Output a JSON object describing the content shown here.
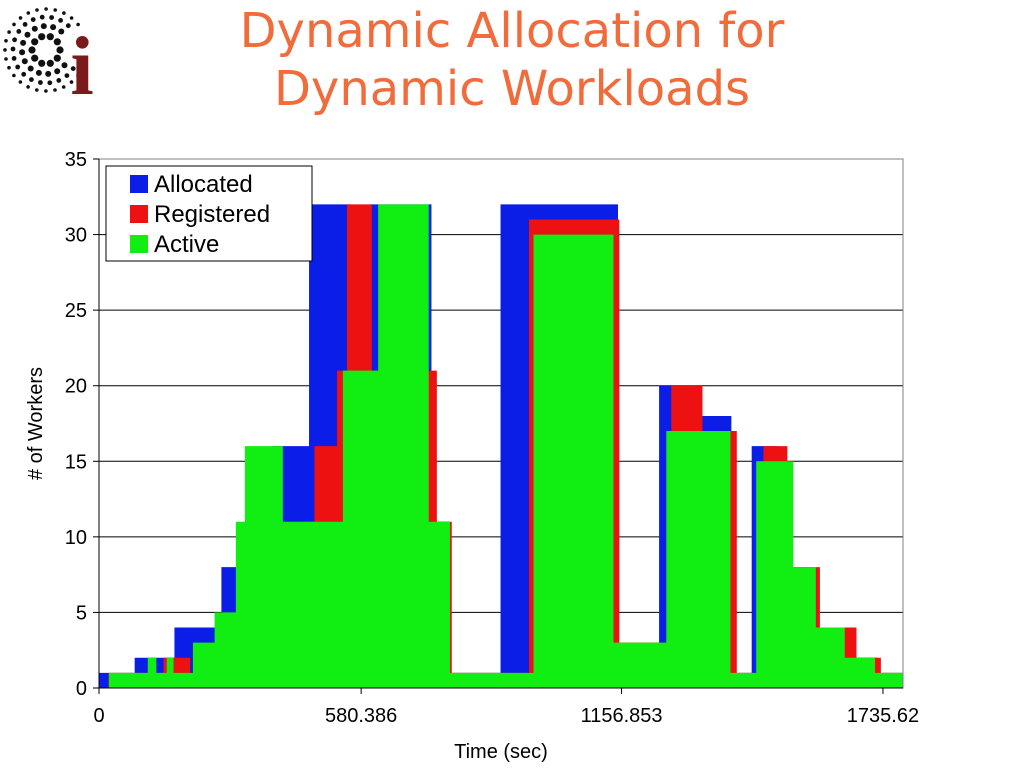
{
  "slide": {
    "title_line1": "Dynamic Allocation for",
    "title_line2": "Dynamic Workloads",
    "logo_letter": "i",
    "logo_colors": {
      "dots": "#111111",
      "letter": "#7a1a1a"
    }
  },
  "chart_data": {
    "type": "area",
    "title": "",
    "xlabel": "Time (sec)",
    "ylabel": "# of Workers",
    "xlim": [
      0,
      1780
    ],
    "ylim": [
      0,
      35
    ],
    "x_ticks": [
      {
        "value": 0,
        "label": "0"
      },
      {
        "value": 580.386,
        "label": "580.386"
      },
      {
        "value": 1156.853,
        "label": "1156.853"
      },
      {
        "value": 1735.62,
        "label": "1735.62"
      }
    ],
    "y_ticks": [
      0,
      5,
      10,
      15,
      20,
      25,
      30,
      35
    ],
    "grid": "horizontal",
    "legend": {
      "position": "top-left"
    },
    "series": [
      {
        "name": "Allocated",
        "color": "#0a1ee8",
        "steps": [
          [
            0,
            1
          ],
          [
            79,
            2
          ],
          [
            167,
            4
          ],
          [
            271,
            8
          ],
          [
            384,
            16
          ],
          [
            465,
            32
          ],
          [
            556,
            21
          ],
          [
            600,
            32
          ],
          [
            736,
            11
          ],
          [
            776,
            1
          ],
          [
            889,
            32
          ],
          [
            1149,
            3
          ],
          [
            1240,
            20
          ],
          [
            1320,
            18
          ],
          [
            1400,
            1
          ],
          [
            1445,
            16
          ],
          [
            1503,
            8
          ],
          [
            1573,
            4
          ],
          [
            1646,
            2
          ],
          [
            1724,
            1
          ],
          [
            1779,
            0
          ]
        ]
      },
      {
        "name": "Registered",
        "color": "#ee1111",
        "steps": [
          [
            0,
            0
          ],
          [
            21,
            1
          ],
          [
            143,
            2
          ],
          [
            202,
            1
          ],
          [
            242,
            3
          ],
          [
            334,
            5
          ],
          [
            408,
            11
          ],
          [
            477,
            16
          ],
          [
            527,
            21
          ],
          [
            549,
            32
          ],
          [
            604,
            21
          ],
          [
            748,
            11
          ],
          [
            781,
            1
          ],
          [
            952,
            31
          ],
          [
            1152,
            3
          ],
          [
            1267,
            20
          ],
          [
            1336,
            17
          ],
          [
            1412,
            1
          ],
          [
            1471,
            16
          ],
          [
            1524,
            8
          ],
          [
            1596,
            4
          ],
          [
            1677,
            2
          ],
          [
            1731,
            1
          ],
          [
            1779,
            0
          ]
        ]
      },
      {
        "name": "Active",
        "color": "#11ee11",
        "steps": [
          [
            0,
            0
          ],
          [
            22,
            1
          ],
          [
            108,
            2
          ],
          [
            127,
            1
          ],
          [
            150,
            2
          ],
          [
            165,
            1
          ],
          [
            208,
            3
          ],
          [
            256,
            5
          ],
          [
            303,
            11
          ],
          [
            323,
            16
          ],
          [
            407,
            11
          ],
          [
            540,
            21
          ],
          [
            618,
            32
          ],
          [
            730,
            11
          ],
          [
            777,
            1
          ],
          [
            962,
            30
          ],
          [
            1139,
            3
          ],
          [
            1256,
            17
          ],
          [
            1336,
            17
          ],
          [
            1398,
            1
          ],
          [
            1455,
            15
          ],
          [
            1537,
            8
          ],
          [
            1587,
            4
          ],
          [
            1651,
            2
          ],
          [
            1718,
            1
          ],
          [
            1779,
            0
          ]
        ]
      }
    ]
  }
}
